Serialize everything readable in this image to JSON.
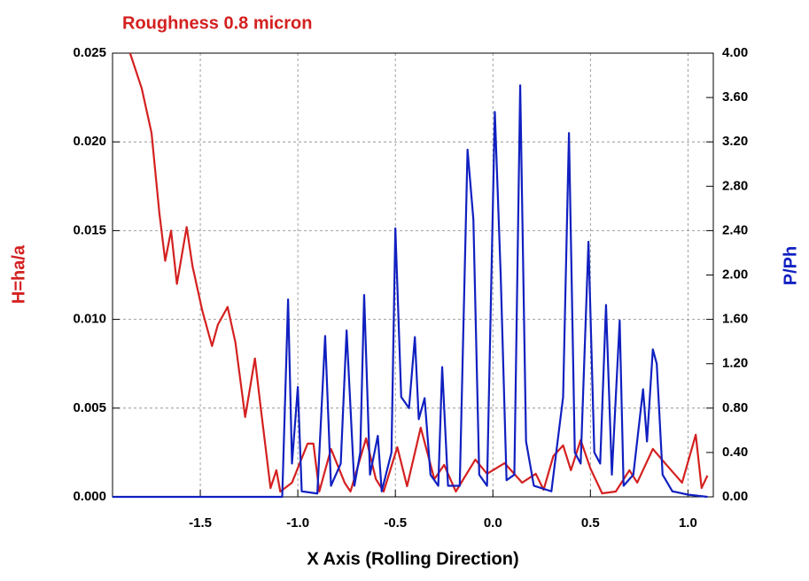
{
  "chart_data": {
    "type": "line",
    "title": "Roughness 0.8 micron",
    "xlabel": "X Axis (Rolling Direction)",
    "ylabel": "H=ha/a",
    "y2label": "P/Ph",
    "xlim": [
      -1.95,
      1.13
    ],
    "xticks": [
      -1.5,
      {
        "value": -1.0,
        "label": "-1.0"
      },
      -0.5,
      {
        "value": 0.0,
        "label": "0.0"
      },
      0.5,
      {
        "value": 1.0,
        "label": "1.0"
      }
    ],
    "ylim": [
      0,
      0.025
    ],
    "yticks": [
      {
        "value": 0,
        "label": "0.000"
      },
      0.005,
      {
        "value": 0.01,
        "label": "0.010"
      },
      0.015,
      {
        "value": 0.02,
        "label": "0.020"
      },
      0.025
    ],
    "y2lim": [
      0,
      4
    ],
    "y2ticks": [
      {
        "value": 0,
        "label": "0.00"
      },
      {
        "value": 0.4,
        "label": "0.40"
      },
      {
        "value": 0.8,
        "label": "0.80"
      },
      {
        "value": 1.2,
        "label": "1.20"
      },
      {
        "value": 1.6,
        "label": "1.60"
      },
      {
        "value": 2.0,
        "label": "2.00"
      },
      {
        "value": 2.4,
        "label": "2.40"
      },
      {
        "value": 2.8,
        "label": "2.80"
      },
      {
        "value": 3.2,
        "label": "3.20"
      },
      {
        "value": 3.6,
        "label": "3.60"
      },
      {
        "value": 4.0,
        "label": "4.00"
      }
    ],
    "grid": true,
    "series": [
      {
        "color": "#d42020",
        "axis": "y",
        "x": [
          -1.86,
          -1.8,
          -1.75,
          -1.71,
          -1.68,
          -1.65,
          -1.62,
          -1.57,
          -1.54,
          -1.49,
          -1.44,
          -1.41,
          -1.36,
          -1.32,
          -1.27,
          -1.22,
          -1.19,
          -1.14,
          -1.11,
          -1.09,
          -1.03,
          -0.95,
          -0.92,
          -0.89,
          -0.83,
          -0.76,
          -0.73,
          -0.65,
          -0.6,
          -0.56,
          -0.49,
          -0.44,
          -0.37,
          -0.3,
          -0.25,
          -0.19,
          -0.09,
          -0.03,
          0.06,
          0.15,
          0.22,
          0.26,
          0.31,
          0.36,
          0.4,
          0.45,
          0.5,
          0.56,
          0.63,
          0.7,
          0.74,
          0.82,
          0.89,
          0.97,
          1.04,
          1.07,
          1.1
        ],
        "values": [
          0.025,
          0.023,
          0.0205,
          0.016,
          0.0133,
          0.015,
          0.012,
          0.0152,
          0.013,
          0.0105,
          0.0085,
          0.0097,
          0.0107,
          0.0087,
          0.0045,
          0.0078,
          0.005,
          0.0005,
          0.0015,
          0.0003,
          0.0008,
          0.003,
          0.003,
          0.0003,
          0.0027,
          0.0008,
          0.0003,
          0.0033,
          0.001,
          0.0003,
          0.0028,
          0.0006,
          0.0039,
          0.001,
          0.0018,
          0.0003,
          0.0021,
          0.0013,
          0.0019,
          0.0008,
          0.0013,
          0.0004,
          0.0023,
          0.0029,
          0.0015,
          0.0032,
          0.0016,
          0.0002,
          0.0003,
          0.0015,
          0.0008,
          0.0027,
          0.0018,
          0.0008,
          0.0035,
          0.0005,
          0.0012
        ]
      },
      {
        "color": "#1020c0",
        "axis": "y2",
        "x": [
          -1.95,
          -1.08,
          -1.05,
          -1.03,
          -1.0,
          -0.98,
          -0.9,
          -0.86,
          -0.83,
          -0.78,
          -0.75,
          -0.71,
          -0.68,
          -0.66,
          -0.63,
          -0.59,
          -0.57,
          -0.52,
          -0.5,
          -0.47,
          -0.43,
          -0.4,
          -0.38,
          -0.35,
          -0.32,
          -0.28,
          -0.26,
          -0.23,
          -0.17,
          -0.13,
          -0.1,
          -0.07,
          -0.03,
          0.01,
          0.04,
          0.07,
          0.11,
          0.14,
          0.17,
          0.21,
          0.3,
          0.36,
          0.39,
          0.42,
          0.45,
          0.49,
          0.52,
          0.55,
          0.58,
          0.61,
          0.65,
          0.67,
          0.72,
          0.77,
          0.79,
          0.82,
          0.84,
          0.87,
          0.92,
          1.0,
          1.1
        ],
        "values": [
          0,
          0,
          1.78,
          0.3,
          0.99,
          0.05,
          0.03,
          1.45,
          0.1,
          0.3,
          1.5,
          0.1,
          0.4,
          1.82,
          0.2,
          0.55,
          0.05,
          0.4,
          2.42,
          0.9,
          0.8,
          1.44,
          0.7,
          0.89,
          0.2,
          0.1,
          1.17,
          0.1,
          0.1,
          3.13,
          2.5,
          0.2,
          0.1,
          3.47,
          2.0,
          0.15,
          0.2,
          3.71,
          0.5,
          0.1,
          0.05,
          0.9,
          3.28,
          0.4,
          0.3,
          2.3,
          0.4,
          0.3,
          1.73,
          0.2,
          1.59,
          0.1,
          0.2,
          0.97,
          0.5,
          1.33,
          1.2,
          0.2,
          0.05,
          0.02,
          0
        ]
      }
    ]
  }
}
